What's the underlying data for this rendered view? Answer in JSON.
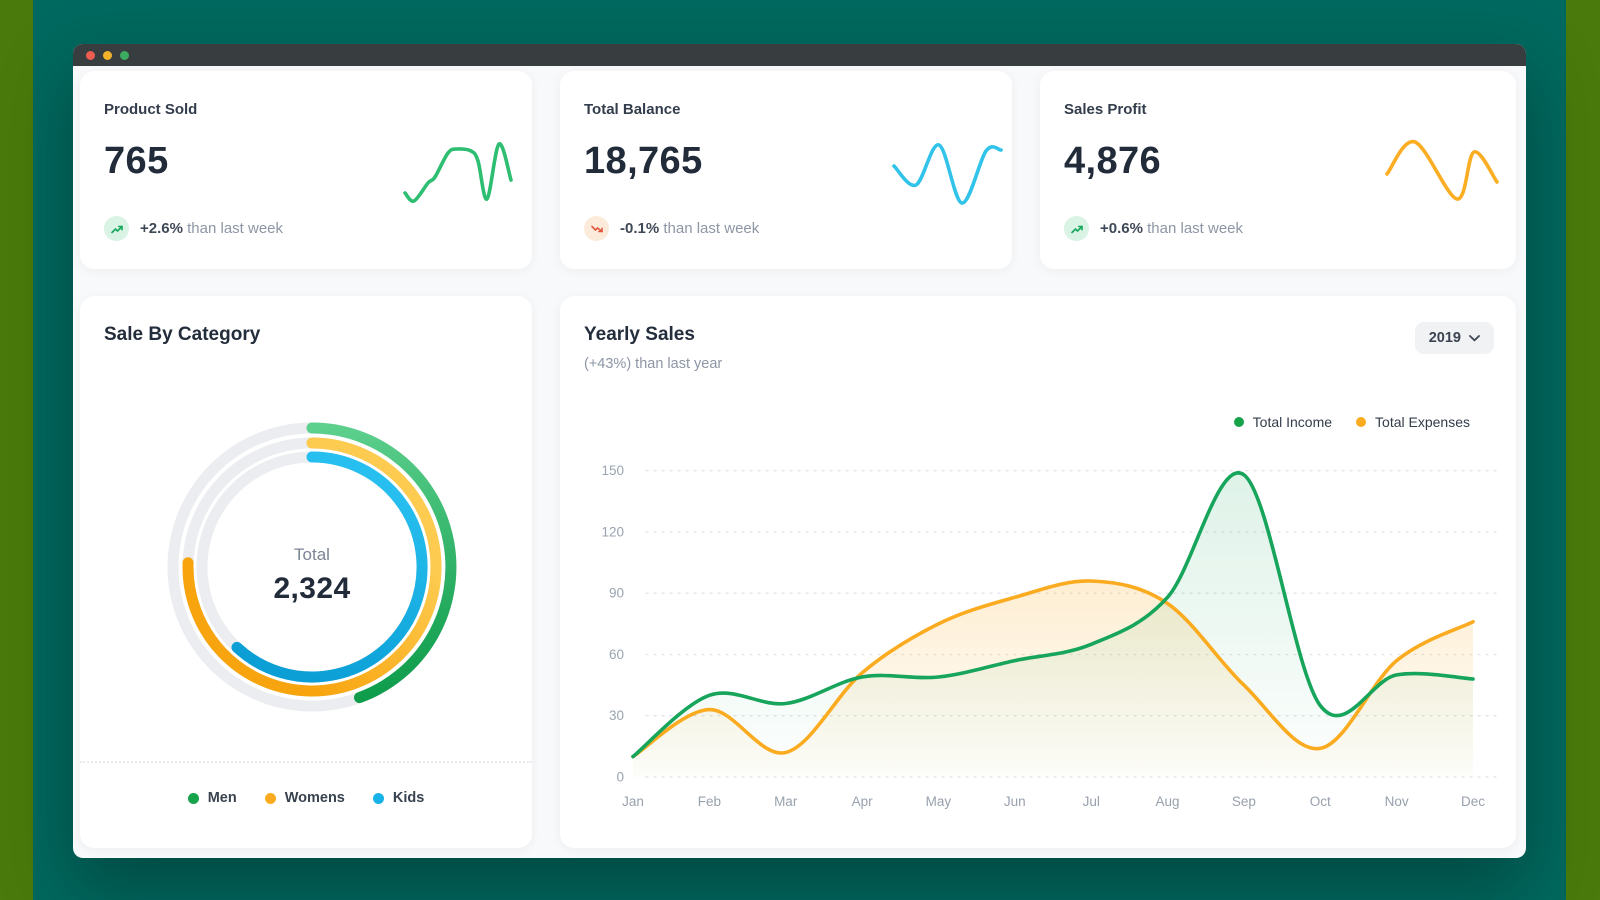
{
  "window": {
    "controls": [
      {
        "name": "close"
      },
      {
        "name": "minimize"
      },
      {
        "name": "expand"
      }
    ]
  },
  "palette": {
    "teal_background": "#00695F",
    "olive_edge": "#4A7A0B",
    "titlebar": "#383E40",
    "income_green": "#17A45B",
    "expense_orange": "#FBAB20",
    "kids_blue": "#16B2E8",
    "positive_green": "#18A85C",
    "negative_red": "#E2573D"
  },
  "stat_cards": [
    {
      "title": "Product Sold",
      "value": "765",
      "change": "+2.6%",
      "change_note": "than last week",
      "trend": "up"
    },
    {
      "title": "Total Balance",
      "value": "18,765",
      "change": "-0.1%",
      "change_note": "than last week",
      "trend": "down"
    },
    {
      "title": "Sales Profit",
      "value": "4,876",
      "change": "+0.6%",
      "change_note": "than last week",
      "trend": "up"
    }
  ],
  "yearly_card": {
    "year_selector": "2019"
  },
  "chart_data": [
    {
      "id": "yearly-sales",
      "type": "area",
      "title": "Yearly Sales",
      "subtitle": "(+43%) than last year",
      "categories": [
        "Jan",
        "Feb",
        "Mar",
        "Apr",
        "May",
        "Jun",
        "Jul",
        "Aug",
        "Sep",
        "Oct",
        "Nov",
        "Dec"
      ],
      "series": [
        {
          "name": "Total Income",
          "color": "#17A45B",
          "values": [
            10,
            40,
            36,
            49,
            49,
            57,
            65,
            88,
            148,
            35,
            50,
            48
          ]
        },
        {
          "name": "Total Expenses",
          "color": "#FBAB20",
          "values": [
            10,
            33,
            12,
            51,
            75,
            88,
            96,
            85,
            45,
            14,
            57,
            76
          ]
        }
      ],
      "ylim": [
        0,
        150
      ],
      "yticks": [
        0,
        30,
        60,
        90,
        120,
        150
      ],
      "grid": "dashed-horizontal",
      "legend_position": "top-right"
    },
    {
      "id": "sale-by-category",
      "type": "donut-progress",
      "title": "Sale By Category",
      "center_label": "Total",
      "center_value": "2,324",
      "rings": [
        {
          "name": "Men",
          "sweep_deg": 160,
          "color_start": "#5ED08E",
          "color_end": "#0F9D4C",
          "legend_color": "#16A34A"
        },
        {
          "name": "Womens",
          "sweep_deg": 272,
          "color_start": "#FDCB4F",
          "color_end": "#F8A40E",
          "legend_color": "#FBAB20"
        },
        {
          "name": "Kids",
          "sweep_deg": 223,
          "color_start": "#27BFEF",
          "color_end": "#0B9FD6",
          "legend_color": "#16B2E8"
        }
      ]
    },
    {
      "id": "stat-sparklines",
      "type": "line",
      "series": [
        {
          "name": "Product Sold trend",
          "color": "#2DBE72",
          "points": [
            [
              4,
              56
            ],
            [
              13,
              64
            ],
            [
              27,
              46
            ],
            [
              34,
              40
            ],
            [
              47,
              16
            ],
            [
              56,
              12
            ],
            [
              70,
              14
            ],
            [
              77,
              24
            ],
            [
              86,
              62
            ],
            [
              98,
              7
            ],
            [
              110,
              43
            ]
          ]
        },
        {
          "name": "Total Balance trend",
          "color": "#31C3EA",
          "points": [
            [
              5,
              29
            ],
            [
              27,
              48
            ],
            [
              50,
              8
            ],
            [
              73,
              66
            ],
            [
              97,
              14
            ],
            [
              112,
              13
            ]
          ]
        },
        {
          "name": "Sales Profit trend",
          "color": "#FBAD24",
          "points": [
            [
              2,
              37
            ],
            [
              30,
              5
            ],
            [
              72,
              62
            ],
            [
              89,
              15
            ],
            [
              112,
              45
            ]
          ]
        }
      ]
    }
  ]
}
